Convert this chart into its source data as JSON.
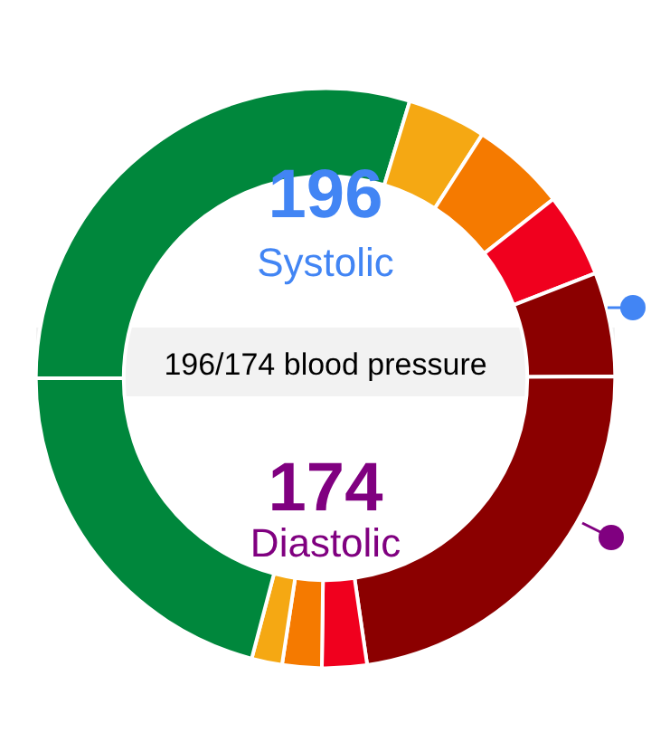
{
  "chart_data": {
    "type": "donut",
    "title": "196/174 blood pressure",
    "annotations": [
      "196",
      "Systolic",
      "174",
      "Diastolic"
    ],
    "categories": [
      null,
      null,
      null,
      null,
      null,
      null,
      null,
      null,
      null,
      null
    ],
    "values": [
      29.7,
      4.4,
      5.3,
      4.7,
      5.8,
      22.8,
      2.5,
      2.2,
      1.7,
      20.9
    ],
    "colors": [
      "#00873c",
      "#f5a813",
      "#f57a00",
      "#f0001e",
      "#8b0000",
      "#8b0000",
      "#f0001e",
      "#f57a00",
      "#f5a813",
      "#00873c"
    ]
  }
}
